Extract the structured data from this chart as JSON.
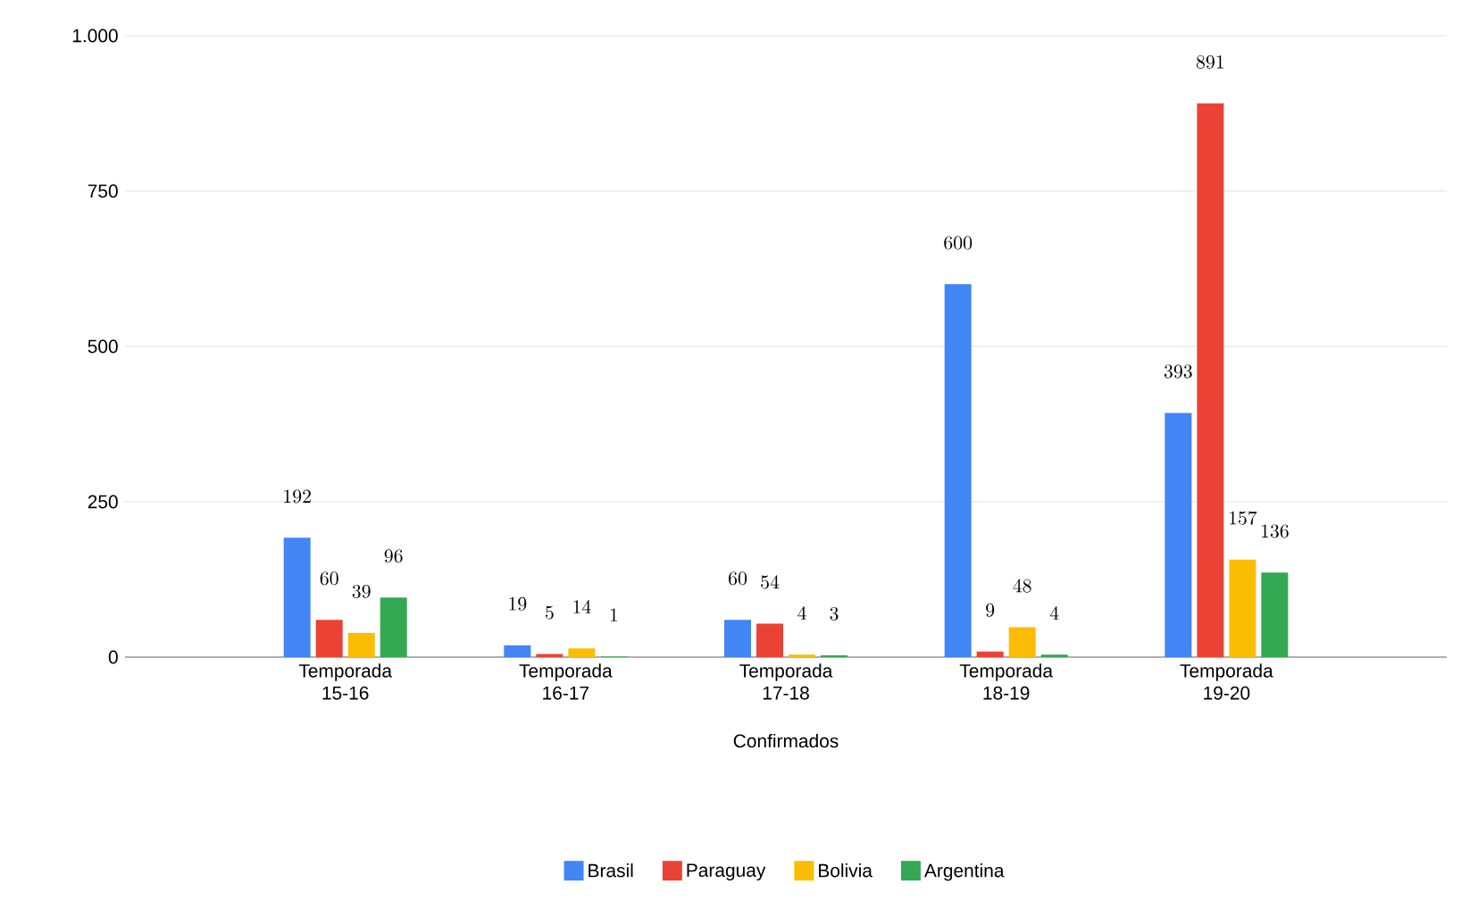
{
  "chart_data": {
    "type": "bar",
    "xlabel": "Confirmados",
    "categories": [
      "Temporada 15-16",
      "Temporada 16-17",
      "Temporada 17-18",
      "Temporada 18-19",
      "Temporada 19-20"
    ],
    "series": [
      {
        "name": "Brasil",
        "color": "#4285f4",
        "values": [
          192,
          19,
          60,
          600,
          393
        ]
      },
      {
        "name": "Paraguay",
        "color": "#ea4335",
        "values": [
          60,
          5,
          54,
          9,
          891
        ]
      },
      {
        "name": "Bolivia",
        "color": "#fbbc04",
        "values": [
          39,
          14,
          4,
          48,
          157
        ]
      },
      {
        "name": "Argentina",
        "color": "#34a853",
        "values": [
          96,
          1,
          3,
          4,
          136
        ]
      }
    ],
    "ylim": [
      0,
      1000
    ],
    "yticks": [
      0,
      250,
      500,
      750,
      {
        "value": 1000,
        "label": "1.000"
      }
    ],
    "grid": "y",
    "legend": "bottom",
    "data_labels": true
  }
}
